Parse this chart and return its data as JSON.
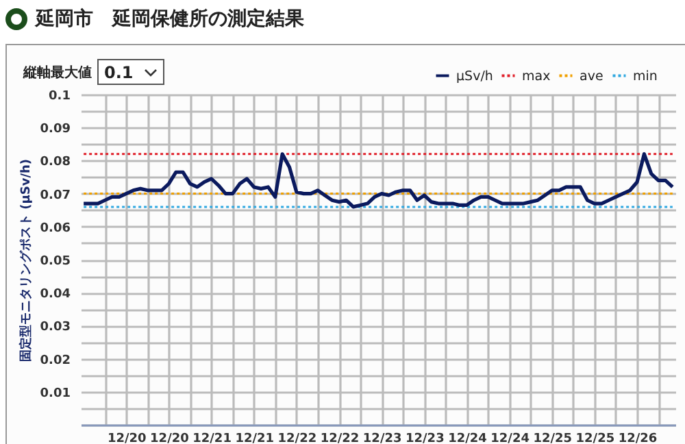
{
  "chart_data": {
    "type": "line",
    "title": "延岡市　延岡保健所の測定結果",
    "ylabel": "固定型モニタリングポスト (μSv/h)",
    "annotations": [
      "縦軸最大値",
      "0.1"
    ],
    "categories": [
      null,
      null,
      null,
      null,
      null,
      null,
      "12/20",
      null,
      null,
      null,
      null,
      null,
      "12/20",
      null,
      null,
      null,
      null,
      null,
      "12/21",
      null,
      null,
      null,
      null,
      null,
      "12/21",
      null,
      null,
      null,
      null,
      null,
      "12/22",
      null,
      null,
      null,
      null,
      null,
      "12/22",
      null,
      null,
      null,
      null,
      null,
      "12/23",
      null,
      null,
      null,
      null,
      null,
      "12/23",
      null,
      null,
      null,
      null,
      null,
      "12/24",
      null,
      null,
      null,
      null,
      null,
      "12/24",
      null,
      null,
      null,
      null,
      null,
      "12/25",
      null,
      null,
      null,
      null,
      null,
      "12/25",
      null,
      null,
      null,
      null,
      null,
      "12/26",
      null,
      null,
      null,
      null,
      null
    ],
    "ylim": [
      0,
      0.1
    ],
    "yticks": [
      {
        "value": 0,
        "label": null
      },
      {
        "value": 0.005,
        "label": null
      },
      0.01,
      {
        "value": 0.015,
        "label": null
      },
      0.02,
      {
        "value": 0.025,
        "label": null
      },
      0.03,
      {
        "value": 0.035,
        "label": null
      },
      0.04,
      {
        "value": 0.045,
        "label": null
      },
      0.05,
      {
        "value": 0.055,
        "label": null
      },
      0.06,
      {
        "value": 0.065,
        "label": null
      },
      0.07,
      {
        "value": 0.075,
        "label": null
      },
      0.08,
      {
        "value": 0.085,
        "label": null
      },
      0.09,
      {
        "value": 0.095,
        "label": null
      },
      0.1
    ],
    "grid": true,
    "legend": "top right",
    "series": [
      {
        "name": "μSv/h",
        "color": "#0b1a5e",
        "line_style": "solid",
        "values": [
          0.067,
          0.067,
          0.067,
          0.068,
          0.069,
          0.069,
          0.07,
          0.071,
          0.0715,
          0.071,
          0.071,
          0.071,
          0.073,
          0.0765,
          0.0765,
          0.073,
          0.072,
          0.0735,
          0.0745,
          0.0725,
          0.07,
          0.07,
          0.073,
          0.0745,
          0.072,
          0.0715,
          0.072,
          0.069,
          0.082,
          0.078,
          0.0705,
          0.07,
          0.07,
          0.071,
          0.0695,
          0.068,
          0.0675,
          0.068,
          0.066,
          0.0665,
          0.067,
          0.069,
          0.07,
          0.0695,
          0.0705,
          0.071,
          0.071,
          0.068,
          0.0695,
          0.0675,
          0.067,
          0.067,
          0.067,
          0.0665,
          0.0665,
          0.068,
          0.069,
          0.069,
          0.068,
          0.067,
          0.067,
          0.067,
          0.067,
          0.0675,
          0.068,
          0.0695,
          0.071,
          0.071,
          0.072,
          0.072,
          0.072,
          0.068,
          0.067,
          0.067,
          0.068,
          0.069,
          0.07,
          0.071,
          0.0735,
          0.082,
          0.076,
          0.074,
          0.074,
          0.072
        ]
      },
      {
        "name": "max",
        "color": "#e0202a",
        "line_style": "dotted",
        "values": [
          0.082,
          0.082,
          0.082,
          0.082,
          0.082,
          0.082,
          0.082,
          0.082,
          0.082,
          0.082,
          0.082,
          0.082,
          0.082,
          0.082,
          0.082,
          0.082,
          0.082,
          0.082,
          0.082,
          0.082,
          0.082,
          0.082,
          0.082,
          0.082,
          0.082,
          0.082,
          0.082,
          0.082,
          0.082,
          0.082,
          0.082,
          0.082,
          0.082,
          0.082,
          0.082,
          0.082,
          0.082,
          0.082,
          0.082,
          0.082,
          0.082,
          0.082,
          0.082,
          0.082,
          0.082,
          0.082,
          0.082,
          0.082,
          0.082,
          0.082,
          0.082,
          0.082,
          0.082,
          0.082,
          0.082,
          0.082,
          0.082,
          0.082,
          0.082,
          0.082,
          0.082,
          0.082,
          0.082,
          0.082,
          0.082,
          0.082,
          0.082,
          0.082,
          0.082,
          0.082,
          0.082,
          0.082,
          0.082,
          0.082,
          0.082,
          0.082,
          0.082,
          0.082,
          0.082,
          0.082,
          0.082,
          0.082,
          0.082,
          0.082
        ]
      },
      {
        "name": "ave",
        "color": "#f0a000",
        "line_style": "dotted",
        "values": [
          0.07,
          0.07,
          0.07,
          0.07,
          0.07,
          0.07,
          0.07,
          0.07,
          0.07,
          0.07,
          0.07,
          0.07,
          0.07,
          0.07,
          0.07,
          0.07,
          0.07,
          0.07,
          0.07,
          0.07,
          0.07,
          0.07,
          0.07,
          0.07,
          0.07,
          0.07,
          0.07,
          0.07,
          0.07,
          0.07,
          0.07,
          0.07,
          0.07,
          0.07,
          0.07,
          0.07,
          0.07,
          0.07,
          0.07,
          0.07,
          0.07,
          0.07,
          0.07,
          0.07,
          0.07,
          0.07,
          0.07,
          0.07,
          0.07,
          0.07,
          0.07,
          0.07,
          0.07,
          0.07,
          0.07,
          0.07,
          0.07,
          0.07,
          0.07,
          0.07,
          0.07,
          0.07,
          0.07,
          0.07,
          0.07,
          0.07,
          0.07,
          0.07,
          0.07,
          0.07,
          0.07,
          0.07,
          0.07,
          0.07,
          0.07,
          0.07,
          0.07,
          0.07,
          0.07,
          0.07,
          0.07,
          0.07,
          0.07,
          0.07
        ]
      },
      {
        "name": "min",
        "color": "#30a8e0",
        "line_style": "dotted",
        "values": [
          0.066,
          0.066,
          0.066,
          0.066,
          0.066,
          0.066,
          0.066,
          0.066,
          0.066,
          0.066,
          0.066,
          0.066,
          0.066,
          0.066,
          0.066,
          0.066,
          0.066,
          0.066,
          0.066,
          0.066,
          0.066,
          0.066,
          0.066,
          0.066,
          0.066,
          0.066,
          0.066,
          0.066,
          0.066,
          0.066,
          0.066,
          0.066,
          0.066,
          0.066,
          0.066,
          0.066,
          0.066,
          0.066,
          0.066,
          0.066,
          0.066,
          0.066,
          0.066,
          0.066,
          0.066,
          0.066,
          0.066,
          0.066,
          0.066,
          0.066,
          0.066,
          0.066,
          0.066,
          0.066,
          0.066,
          0.066,
          0.066,
          0.066,
          0.066,
          0.066,
          0.066,
          0.066,
          0.066,
          0.066,
          0.066,
          0.066,
          0.066,
          0.066,
          0.066,
          0.066,
          0.066,
          0.066,
          0.066,
          0.066,
          0.066,
          0.066,
          0.066,
          0.066,
          0.066,
          0.066,
          0.066,
          0.066,
          0.066,
          0.066
        ]
      }
    ]
  }
}
